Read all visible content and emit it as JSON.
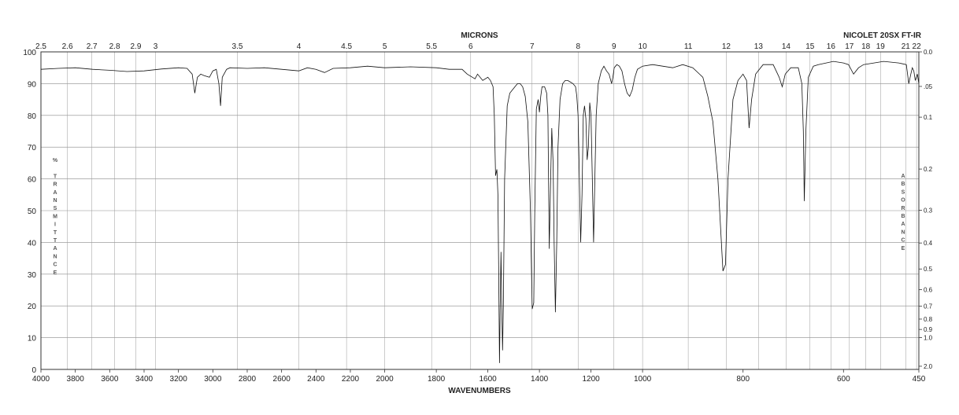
{
  "chart_data": {
    "type": "line",
    "title": "NICOLET 20SX FT-IR",
    "top_axis_title": "MICRONS",
    "xlabel": "WAVENUMBERS",
    "ylabel_left": "% TRANSMITTANCE",
    "ylabel_right": "ABSORBANCE",
    "grid": true,
    "xlim": [
      4000,
      450
    ],
    "ylim": [
      0,
      100
    ],
    "x_tick_labels": [
      "4000",
      "3800",
      "3600",
      "3400",
      "3200",
      "3000",
      "2800",
      "2600",
      "2400",
      "2200",
      "2000",
      "1800",
      "1600",
      "1400",
      "1200",
      "1000",
      "800",
      "600",
      "450"
    ],
    "y_tick_labels": [
      "0",
      "10",
      "20",
      "30",
      "40",
      "50",
      "60",
      "70",
      "80",
      "90",
      "100"
    ],
    "micron_ticks": [
      2.5,
      2.6,
      2.7,
      2.8,
      2.9,
      3,
      3.5,
      4,
      4.5,
      5,
      5.5,
      6,
      7,
      8,
      9,
      10,
      11,
      12,
      13,
      14,
      15,
      16,
      17,
      18,
      19,
      21,
      22
    ],
    "micron_labels": [
      "2.5",
      "2.6",
      "2.7",
      "2.8",
      "2.9",
      "3",
      "3.5",
      "4",
      "4.5",
      "5",
      "5.5",
      "6",
      "7",
      "8",
      "9",
      "10",
      "11",
      "12",
      "13",
      "14",
      "15",
      "16",
      "17",
      "18",
      "19",
      "21",
      "22"
    ],
    "absorbance_ticks": [
      0,
      0.05,
      0.1,
      0.2,
      0.3,
      0.4,
      0.5,
      0.6,
      0.7,
      0.8,
      0.9,
      1.0,
      2.0
    ],
    "absorbance_labels": [
      "0.0",
      ".05",
      "0.1",
      "0.2",
      "0.3",
      "0.4",
      "0.5",
      "0.6",
      "0.7",
      "0.8",
      "0.9",
      "1.0",
      "2.0"
    ],
    "series": [
      {
        "color": "#111111",
        "points": [
          [
            4000,
            94.5
          ],
          [
            3900,
            94.8
          ],
          [
            3800,
            95
          ],
          [
            3700,
            94.5
          ],
          [
            3600,
            94.2
          ],
          [
            3500,
            93.8
          ],
          [
            3400,
            94
          ],
          [
            3300,
            94.6
          ],
          [
            3200,
            95
          ],
          [
            3150,
            94.8
          ],
          [
            3120,
            93
          ],
          [
            3105,
            87
          ],
          [
            3090,
            92
          ],
          [
            3070,
            93
          ],
          [
            3050,
            92.5
          ],
          [
            3020,
            92
          ],
          [
            3000,
            94
          ],
          [
            2980,
            94.5
          ],
          [
            2965,
            90
          ],
          [
            2955,
            83
          ],
          [
            2945,
            92
          ],
          [
            2920,
            94.5
          ],
          [
            2900,
            95
          ],
          [
            2800,
            94.8
          ],
          [
            2700,
            95
          ],
          [
            2600,
            94.5
          ],
          [
            2500,
            94
          ],
          [
            2450,
            95
          ],
          [
            2400,
            94.5
          ],
          [
            2350,
            93.5
          ],
          [
            2300,
            94.8
          ],
          [
            2200,
            95
          ],
          [
            2100,
            95.5
          ],
          [
            2000,
            95
          ],
          [
            1900,
            95.3
          ],
          [
            1800,
            95
          ],
          [
            1750,
            94.5
          ],
          [
            1700,
            94.5
          ],
          [
            1680,
            93
          ],
          [
            1660,
            92
          ],
          [
            1650,
            91.5
          ],
          [
            1640,
            93
          ],
          [
            1620,
            91
          ],
          [
            1600,
            92
          ],
          [
            1590,
            91
          ],
          [
            1580,
            89
          ],
          [
            1575,
            80
          ],
          [
            1570,
            61
          ],
          [
            1565,
            63
          ],
          [
            1561,
            55
          ],
          [
            1558,
            30
          ],
          [
            1555,
            2
          ],
          [
            1552,
            20
          ],
          [
            1549,
            37
          ],
          [
            1546,
            20
          ],
          [
            1543,
            6
          ],
          [
            1540,
            20
          ],
          [
            1535,
            60
          ],
          [
            1525,
            83
          ],
          [
            1515,
            87
          ],
          [
            1505,
            88
          ],
          [
            1495,
            89
          ],
          [
            1485,
            90
          ],
          [
            1475,
            90
          ],
          [
            1465,
            89
          ],
          [
            1455,
            86
          ],
          [
            1445,
            78
          ],
          [
            1435,
            50
          ],
          [
            1428,
            19
          ],
          [
            1422,
            21
          ],
          [
            1418,
            50
          ],
          [
            1412,
            82
          ],
          [
            1405,
            85
          ],
          [
            1400,
            81
          ],
          [
            1395,
            86
          ],
          [
            1390,
            89
          ],
          [
            1380,
            89
          ],
          [
            1372,
            87
          ],
          [
            1367,
            80
          ],
          [
            1362,
            38
          ],
          [
            1357,
            58
          ],
          [
            1352,
            76
          ],
          [
            1347,
            65
          ],
          [
            1343,
            40
          ],
          [
            1338,
            18
          ],
          [
            1333,
            40
          ],
          [
            1328,
            70
          ],
          [
            1320,
            85
          ],
          [
            1310,
            90
          ],
          [
            1300,
            91
          ],
          [
            1290,
            91
          ],
          [
            1280,
            90.5
          ],
          [
            1270,
            90
          ],
          [
            1260,
            89
          ],
          [
            1255,
            86
          ],
          [
            1250,
            80
          ],
          [
            1245,
            60
          ],
          [
            1240,
            40
          ],
          [
            1235,
            55
          ],
          [
            1230,
            80
          ],
          [
            1225,
            83
          ],
          [
            1220,
            79
          ],
          [
            1215,
            66
          ],
          [
            1210,
            70
          ],
          [
            1205,
            84
          ],
          [
            1200,
            80
          ],
          [
            1195,
            60
          ],
          [
            1190,
            40
          ],
          [
            1185,
            60
          ],
          [
            1180,
            80
          ],
          [
            1172,
            90
          ],
          [
            1160,
            94
          ],
          [
            1150,
            95.5
          ],
          [
            1140,
            94
          ],
          [
            1130,
            93
          ],
          [
            1120,
            90
          ],
          [
            1115,
            92
          ],
          [
            1110,
            95
          ],
          [
            1100,
            96
          ],
          [
            1090,
            95.5
          ],
          [
            1080,
            94
          ],
          [
            1070,
            90
          ],
          [
            1060,
            87
          ],
          [
            1050,
            86
          ],
          [
            1040,
            88
          ],
          [
            1030,
            92
          ],
          [
            1020,
            94.5
          ],
          [
            1000,
            95.5
          ],
          [
            980,
            96
          ],
          [
            960,
            95.5
          ],
          [
            940,
            95
          ],
          [
            920,
            96
          ],
          [
            900,
            95
          ],
          [
            880,
            92
          ],
          [
            870,
            86
          ],
          [
            860,
            78
          ],
          [
            850,
            60
          ],
          [
            840,
            31
          ],
          [
            835,
            33
          ],
          [
            830,
            60
          ],
          [
            820,
            85
          ],
          [
            810,
            91
          ],
          [
            800,
            93
          ],
          [
            793,
            91
          ],
          [
            788,
            76
          ],
          [
            783,
            85
          ],
          [
            775,
            93
          ],
          [
            760,
            96
          ],
          [
            740,
            96
          ],
          [
            728,
            92
          ],
          [
            722,
            89
          ],
          [
            716,
            93
          ],
          [
            705,
            95
          ],
          [
            690,
            95
          ],
          [
            683,
            90
          ],
          [
            680,
            75
          ],
          [
            678,
            53
          ],
          [
            675,
            75
          ],
          [
            670,
            92
          ],
          [
            660,
            95.5
          ],
          [
            650,
            96
          ],
          [
            620,
            97
          ],
          [
            600,
            96.5
          ],
          [
            590,
            96
          ],
          [
            580,
            93
          ],
          [
            570,
            95
          ],
          [
            560,
            96
          ],
          [
            520,
            97
          ],
          [
            490,
            96.5
          ],
          [
            475,
            96
          ],
          [
            470,
            90
          ],
          [
            466,
            93
          ],
          [
            463,
            95
          ],
          [
            460,
            94
          ],
          [
            457,
            91
          ],
          [
            453,
            93
          ],
          [
            450,
            90
          ]
        ]
      }
    ]
  }
}
